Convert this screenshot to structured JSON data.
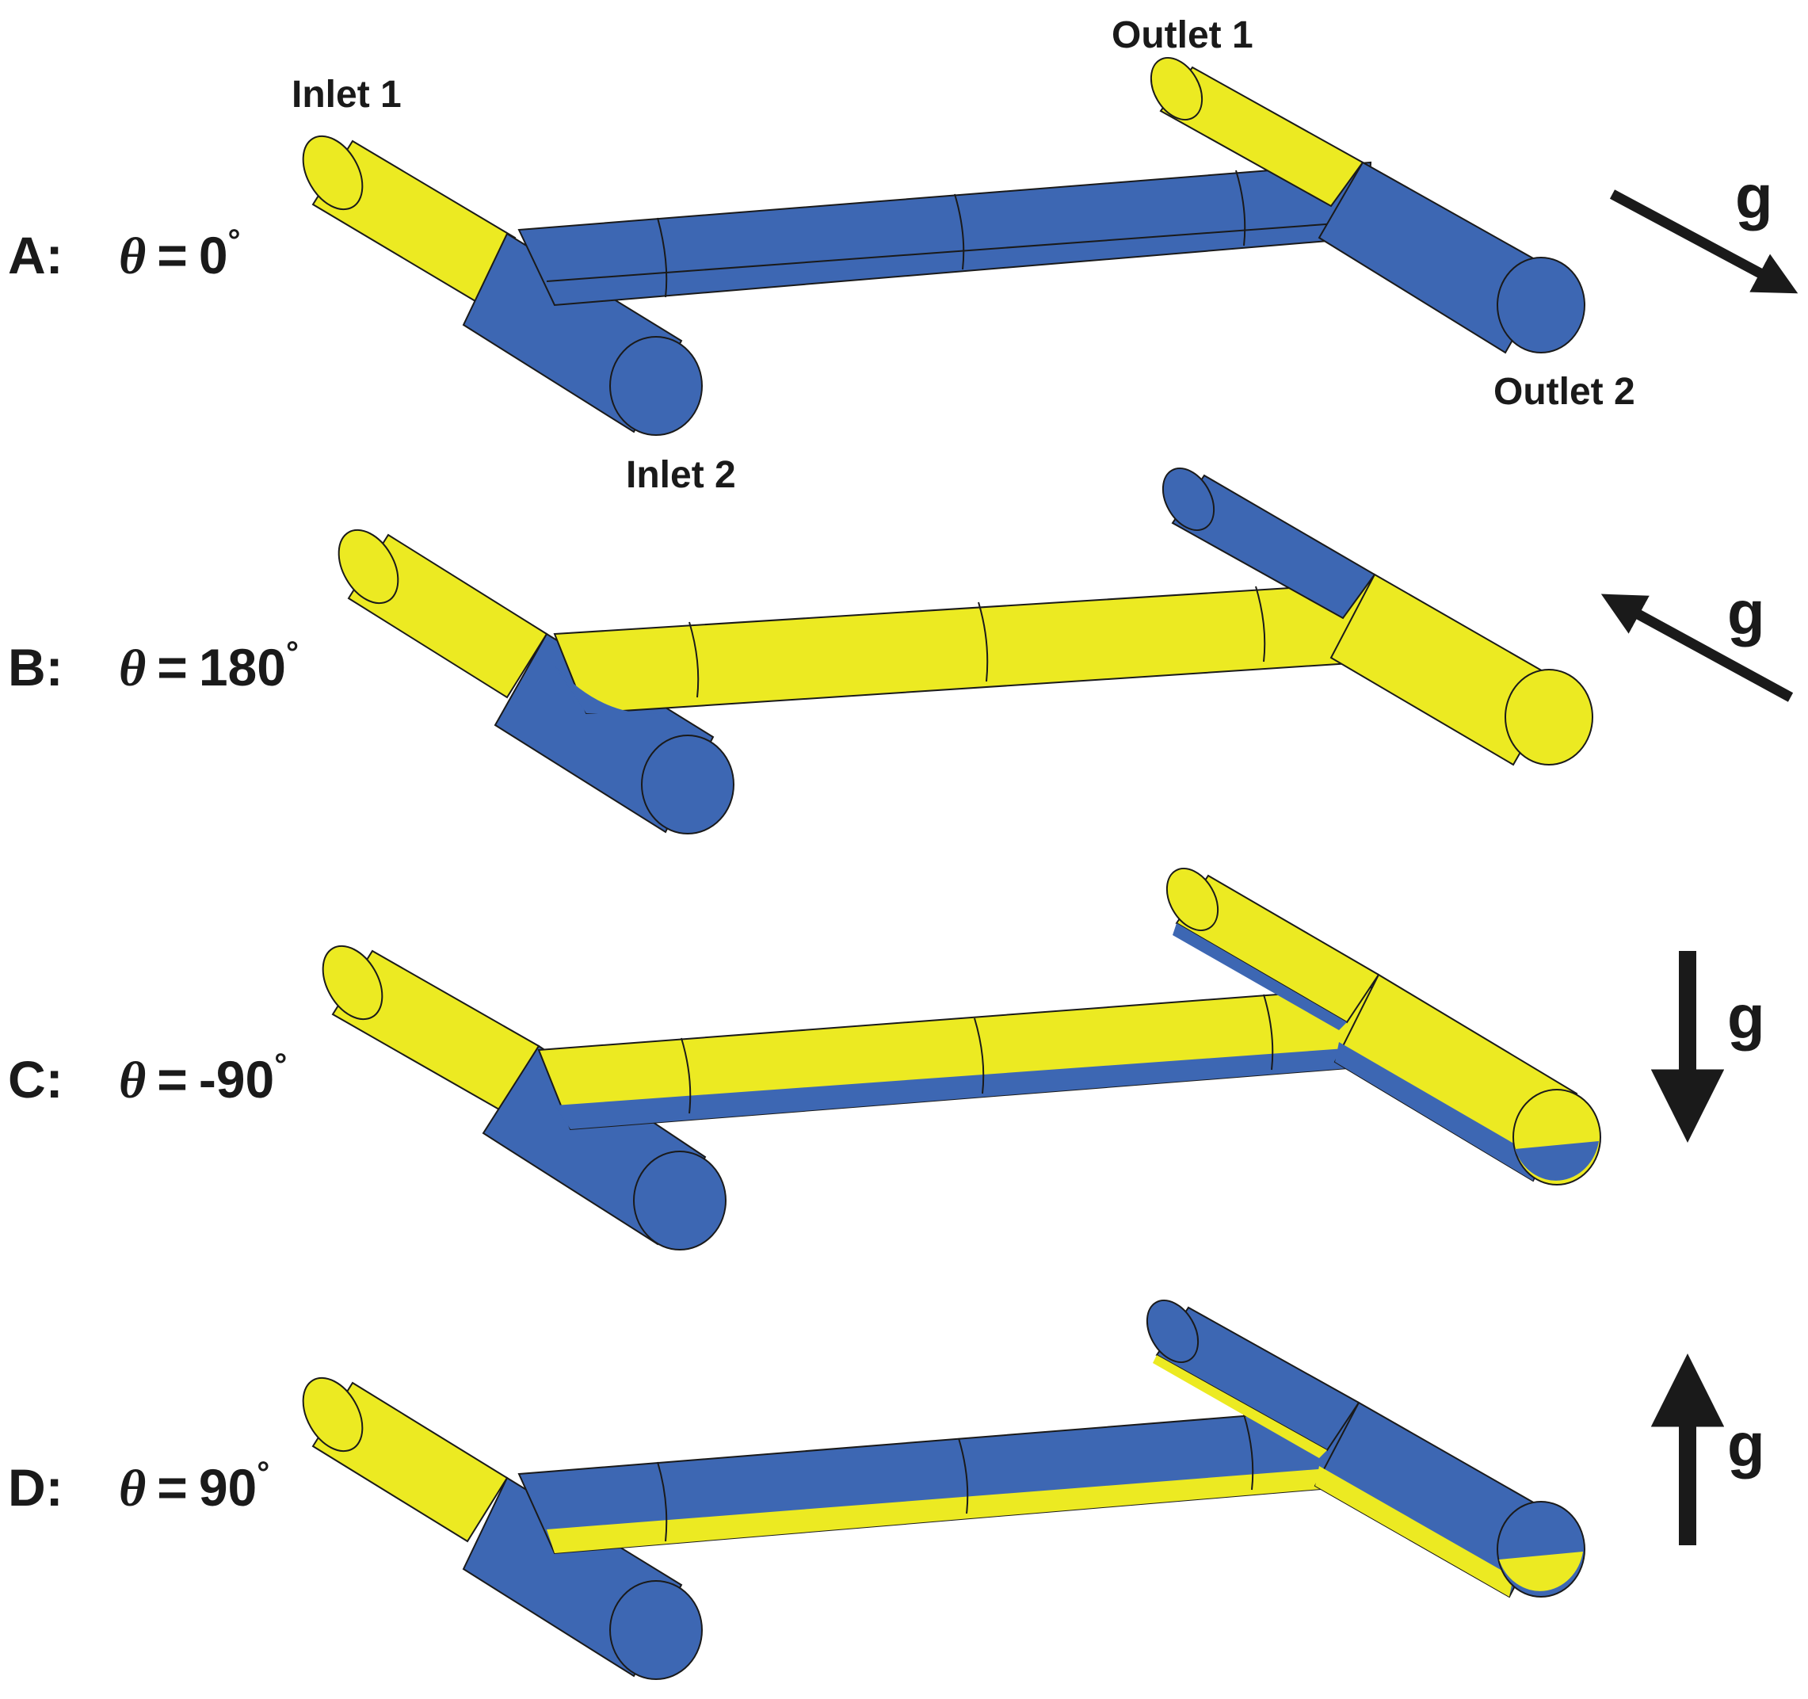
{
  "colors": {
    "fluid_a": "#ecea22",
    "fluid_b": "#3d67b3",
    "outline": "#1a1a1a",
    "text": "#1a1a1a"
  },
  "port_labels": {
    "inlet_1": "Inlet 1",
    "inlet_2": "Inlet 2",
    "outlet_1": "Outlet 1",
    "outlet_2": "Outlet 2"
  },
  "gravity_symbol": "g",
  "panels": [
    {
      "id": "A",
      "letter": "A:",
      "theta_symbol": "θ",
      "equals": "=",
      "angle": "0",
      "degree": "°",
      "gravity_icon": "arrow-down-right-icon"
    },
    {
      "id": "B",
      "letter": "B:",
      "theta_symbol": "θ",
      "equals": "=",
      "angle": "180",
      "degree": "°",
      "gravity_icon": "arrow-up-left-icon"
    },
    {
      "id": "C",
      "letter": "C:",
      "theta_symbol": "θ",
      "equals": "=",
      "angle": "-90",
      "degree": "°",
      "gravity_icon": "arrow-down-icon"
    },
    {
      "id": "D",
      "letter": "D:",
      "theta_symbol": "θ",
      "equals": "=",
      "angle": "90",
      "degree": "°",
      "gravity_icon": "arrow-up-icon"
    }
  ]
}
